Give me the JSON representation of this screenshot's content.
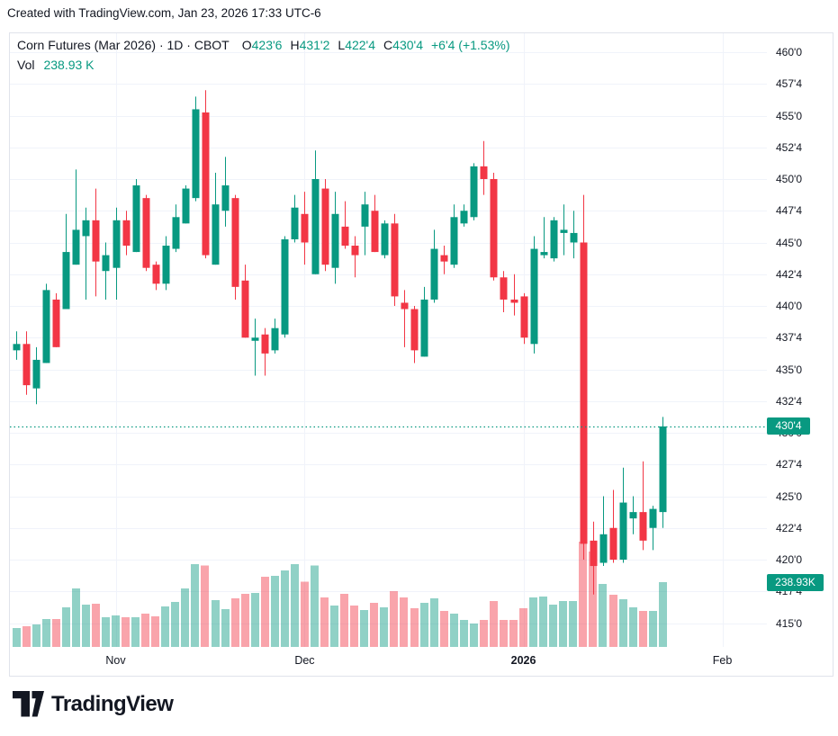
{
  "attribution": "Created with TradingView.com, Jan 23, 2026 17:33 UTC-6",
  "legend": {
    "title": "Corn Futures (Mar 2026) · 1D · CBOT",
    "ohlc": [
      {
        "label": "O",
        "value": "423'6"
      },
      {
        "label": "H",
        "value": "431'2"
      },
      {
        "label": "L",
        "value": "422'4"
      },
      {
        "label": "C",
        "value": "430'4"
      }
    ],
    "change": "+6'4 (+1.53%)",
    "vol_label": "Vol",
    "vol_value": "238.93 K"
  },
  "badges": {
    "price": "430'4",
    "volume": "238.93K"
  },
  "logo": {
    "text": "TradingView",
    "mark": "tradingview-mark-icon"
  },
  "colors": {
    "up": "#089981",
    "down": "#F23645",
    "up_volume": "rgba(8,153,129,0.45)",
    "down_volume": "rgba(242,54,69,0.45)",
    "badge_bg": "#089981",
    "grid": "#f0f3fa",
    "border": "#e0e3eb",
    "text": "#131722",
    "last_price_line": "#089981"
  },
  "chart_data": {
    "type": "candlestick",
    "symbol": "Corn Futures (Mar 2026)",
    "interval": "1D",
    "exchange": "CBOT",
    "ohlc_display": {
      "open": "423'6",
      "high": "431'2",
      "low": "422'4",
      "close": "430'4",
      "change": "+6'4 (+1.53%)"
    },
    "last_price": 430.5,
    "last_volume_k": 238.93,
    "price_axis": {
      "min_label": 415.0,
      "max_label": 460.0,
      "step": 2.5,
      "ticks": [
        {
          "label": "460'0",
          "price": 460.0
        },
        {
          "label": "457'4",
          "price": 457.5
        },
        {
          "label": "455'0",
          "price": 455.0
        },
        {
          "label": "452'4",
          "price": 452.5
        },
        {
          "label": "450'0",
          "price": 450.0
        },
        {
          "label": "447'4",
          "price": 447.5
        },
        {
          "label": "445'0",
          "price": 445.0
        },
        {
          "label": "442'4",
          "price": 442.5
        },
        {
          "label": "440'0",
          "price": 440.0
        },
        {
          "label": "437'4",
          "price": 437.5
        },
        {
          "label": "435'0",
          "price": 435.0
        },
        {
          "label": "432'4",
          "price": 432.5
        },
        {
          "label": "430'0",
          "price": 430.0
        },
        {
          "label": "427'4",
          "price": 427.5
        },
        {
          "label": "425'0",
          "price": 425.0
        },
        {
          "label": "422'4",
          "price": 422.5
        },
        {
          "label": "420'0",
          "price": 420.0
        },
        {
          "label": "417'4",
          "price": 417.5
        },
        {
          "label": "415'0",
          "price": 415.0
        }
      ]
    },
    "time_axis": [
      {
        "label": "Nov",
        "index": 10,
        "bold": false
      },
      {
        "label": "Dec",
        "index": 29,
        "bold": false
      },
      {
        "label": "2026",
        "index": 51,
        "bold": true
      },
      {
        "label": "Feb",
        "index": 71,
        "bold": false
      }
    ],
    "candles_ohlc": [
      [
        436.5,
        438.0,
        435.75,
        437.0
      ],
      [
        437.0,
        438.0,
        433.0,
        433.75
      ],
      [
        433.5,
        436.75,
        432.25,
        435.75
      ],
      [
        435.5,
        441.75,
        435.5,
        441.25
      ],
      [
        440.5,
        441.0,
        436.75,
        436.75
      ],
      [
        439.75,
        447.25,
        439.75,
        444.25
      ],
      [
        443.25,
        450.75,
        443.25,
        446.0
      ],
      [
        445.5,
        447.75,
        440.5,
        446.75
      ],
      [
        446.75,
        449.25,
        440.75,
        443.5
      ],
      [
        442.75,
        445.0,
        440.5,
        444.0
      ],
      [
        443.0,
        447.75,
        440.5,
        446.75
      ],
      [
        446.75,
        447.5,
        444.0,
        444.75
      ],
      [
        444.25,
        450.0,
        444.25,
        449.5
      ],
      [
        448.5,
        448.75,
        442.75,
        443.0
      ],
      [
        443.25,
        443.5,
        441.25,
        441.75
      ],
      [
        441.75,
        445.5,
        441.25,
        444.75
      ],
      [
        444.5,
        448.0,
        444.25,
        447.0
      ],
      [
        446.5,
        449.5,
        446.5,
        449.25
      ],
      [
        448.5,
        456.5,
        448.25,
        455.5
      ],
      [
        455.25,
        457.0,
        443.75,
        444.0
      ],
      [
        443.25,
        450.5,
        443.25,
        448.0
      ],
      [
        447.5,
        451.75,
        446.25,
        449.5
      ],
      [
        448.5,
        448.75,
        440.5,
        441.5
      ],
      [
        442.0,
        443.25,
        437.5,
        437.5
      ],
      [
        437.25,
        439.0,
        434.5,
        437.5
      ],
      [
        437.75,
        438.25,
        434.5,
        436.25
      ],
      [
        436.5,
        439.0,
        436.25,
        438.25
      ],
      [
        437.75,
        445.5,
        437.5,
        445.25
      ],
      [
        445.25,
        448.75,
        445.0,
        447.75
      ],
      [
        447.25,
        449.0,
        443.25,
        445.0
      ],
      [
        442.5,
        452.25,
        442.5,
        450.0
      ],
      [
        449.25,
        450.0,
        442.75,
        443.25
      ],
      [
        443.0,
        449.0,
        441.75,
        447.25
      ],
      [
        446.25,
        448.25,
        444.5,
        444.75
      ],
      [
        444.75,
        445.5,
        442.25,
        444.0
      ],
      [
        446.25,
        449.0,
        444.0,
        448.0
      ],
      [
        447.5,
        448.75,
        444.25,
        444.25
      ],
      [
        444.0,
        446.75,
        443.75,
        446.5
      ],
      [
        446.5,
        447.25,
        440.0,
        440.75
      ],
      [
        440.25,
        441.25,
        436.75,
        439.75
      ],
      [
        439.75,
        440.0,
        435.5,
        436.5
      ],
      [
        436.0,
        441.5,
        436.0,
        440.5
      ],
      [
        440.5,
        446.0,
        440.25,
        444.5
      ],
      [
        444.0,
        444.75,
        442.5,
        443.5
      ],
      [
        443.25,
        448.0,
        443.0,
        447.0
      ],
      [
        446.5,
        448.0,
        446.25,
        447.5
      ],
      [
        447.0,
        451.25,
        446.75,
        451.0
      ],
      [
        451.0,
        453.0,
        448.75,
        450.0
      ],
      [
        450.0,
        450.5,
        442.0,
        442.25
      ],
      [
        442.25,
        442.75,
        439.5,
        440.5
      ],
      [
        440.5,
        442.5,
        439.25,
        440.25
      ],
      [
        440.75,
        441.0,
        437.0,
        437.5
      ],
      [
        437.0,
        445.5,
        436.25,
        444.5
      ],
      [
        444.0,
        447.0,
        443.75,
        444.25
      ],
      [
        443.75,
        447.0,
        443.5,
        446.75
      ],
      [
        445.75,
        448.0,
        444.0,
        446.0
      ],
      [
        445.0,
        447.5,
        443.75,
        445.75
      ],
      [
        445.0,
        448.75,
        420.0,
        421.25
      ],
      [
        421.5,
        423.0,
        417.25,
        419.5
      ],
      [
        419.75,
        425.0,
        419.5,
        422.0
      ],
      [
        422.5,
        425.5,
        419.75,
        420.0
      ],
      [
        420.0,
        427.25,
        419.75,
        424.5
      ],
      [
        423.25,
        425.0,
        422.0,
        423.75
      ],
      [
        423.75,
        427.75,
        420.75,
        421.5
      ],
      [
        422.5,
        424.25,
        420.75,
        424.0
      ],
      [
        423.75,
        431.25,
        422.5,
        430.5
      ]
    ],
    "volumes_k": [
      70,
      76,
      83,
      103,
      103,
      146,
      216,
      156,
      159,
      110,
      116,
      110,
      110,
      123,
      113,
      149,
      166,
      216,
      305,
      300,
      173,
      139,
      179,
      196,
      199,
      259,
      262,
      282,
      305,
      240,
      300,
      183,
      153,
      196,
      152,
      136,
      162,
      146,
      206,
      183,
      143,
      163,
      179,
      133,
      123,
      100,
      86,
      100,
      169,
      100,
      100,
      143,
      183,
      186,
      156,
      169,
      169,
      388,
      352,
      232,
      193,
      176,
      146,
      133,
      133,
      238.93
    ]
  }
}
